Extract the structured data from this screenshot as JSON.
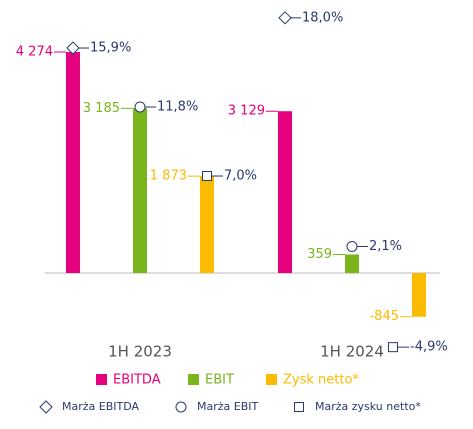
{
  "chart_data": {
    "type": "bar",
    "categories": [
      "1H 2023",
      "1H 2024"
    ],
    "series": [
      {
        "name": "EBITDA",
        "color": "#e5007e",
        "values": [
          4274,
          3129
        ],
        "value_labels": [
          "4 274",
          "3 129"
        ]
      },
      {
        "name": "EBIT",
        "color": "#7ab51d",
        "values": [
          3185,
          359
        ],
        "value_labels": [
          "3 185",
          "359"
        ]
      },
      {
        "name": "Zysk netto*",
        "color": "#fbbb00",
        "values": [
          1873,
          -845
        ],
        "value_labels": [
          "1 873",
          "-845"
        ]
      },
      {
        "name": "Marża EBITDA",
        "axis": "y2",
        "marker": "diamond",
        "color": "#2a3a6e",
        "values": [
          15.9,
          18.0
        ],
        "value_labels": [
          "15,9%",
          "18,0%"
        ]
      },
      {
        "name": "Marża EBIT",
        "axis": "y2",
        "marker": "circle",
        "color": "#2a3a6e",
        "values": [
          11.8,
          2.1
        ],
        "value_labels": [
          "11,8%",
          "2,1%"
        ]
      },
      {
        "name": "Marża zysku netto*",
        "axis": "y2",
        "marker": "square",
        "color": "#2a3a6e",
        "values": [
          7.0,
          -4.9
        ],
        "value_labels": [
          "7,0%",
          "-4,9%"
        ]
      }
    ],
    "ylim": [
      -1500,
      5280
    ],
    "y2lim": [
      -5.14,
      19.24
    ]
  }
}
